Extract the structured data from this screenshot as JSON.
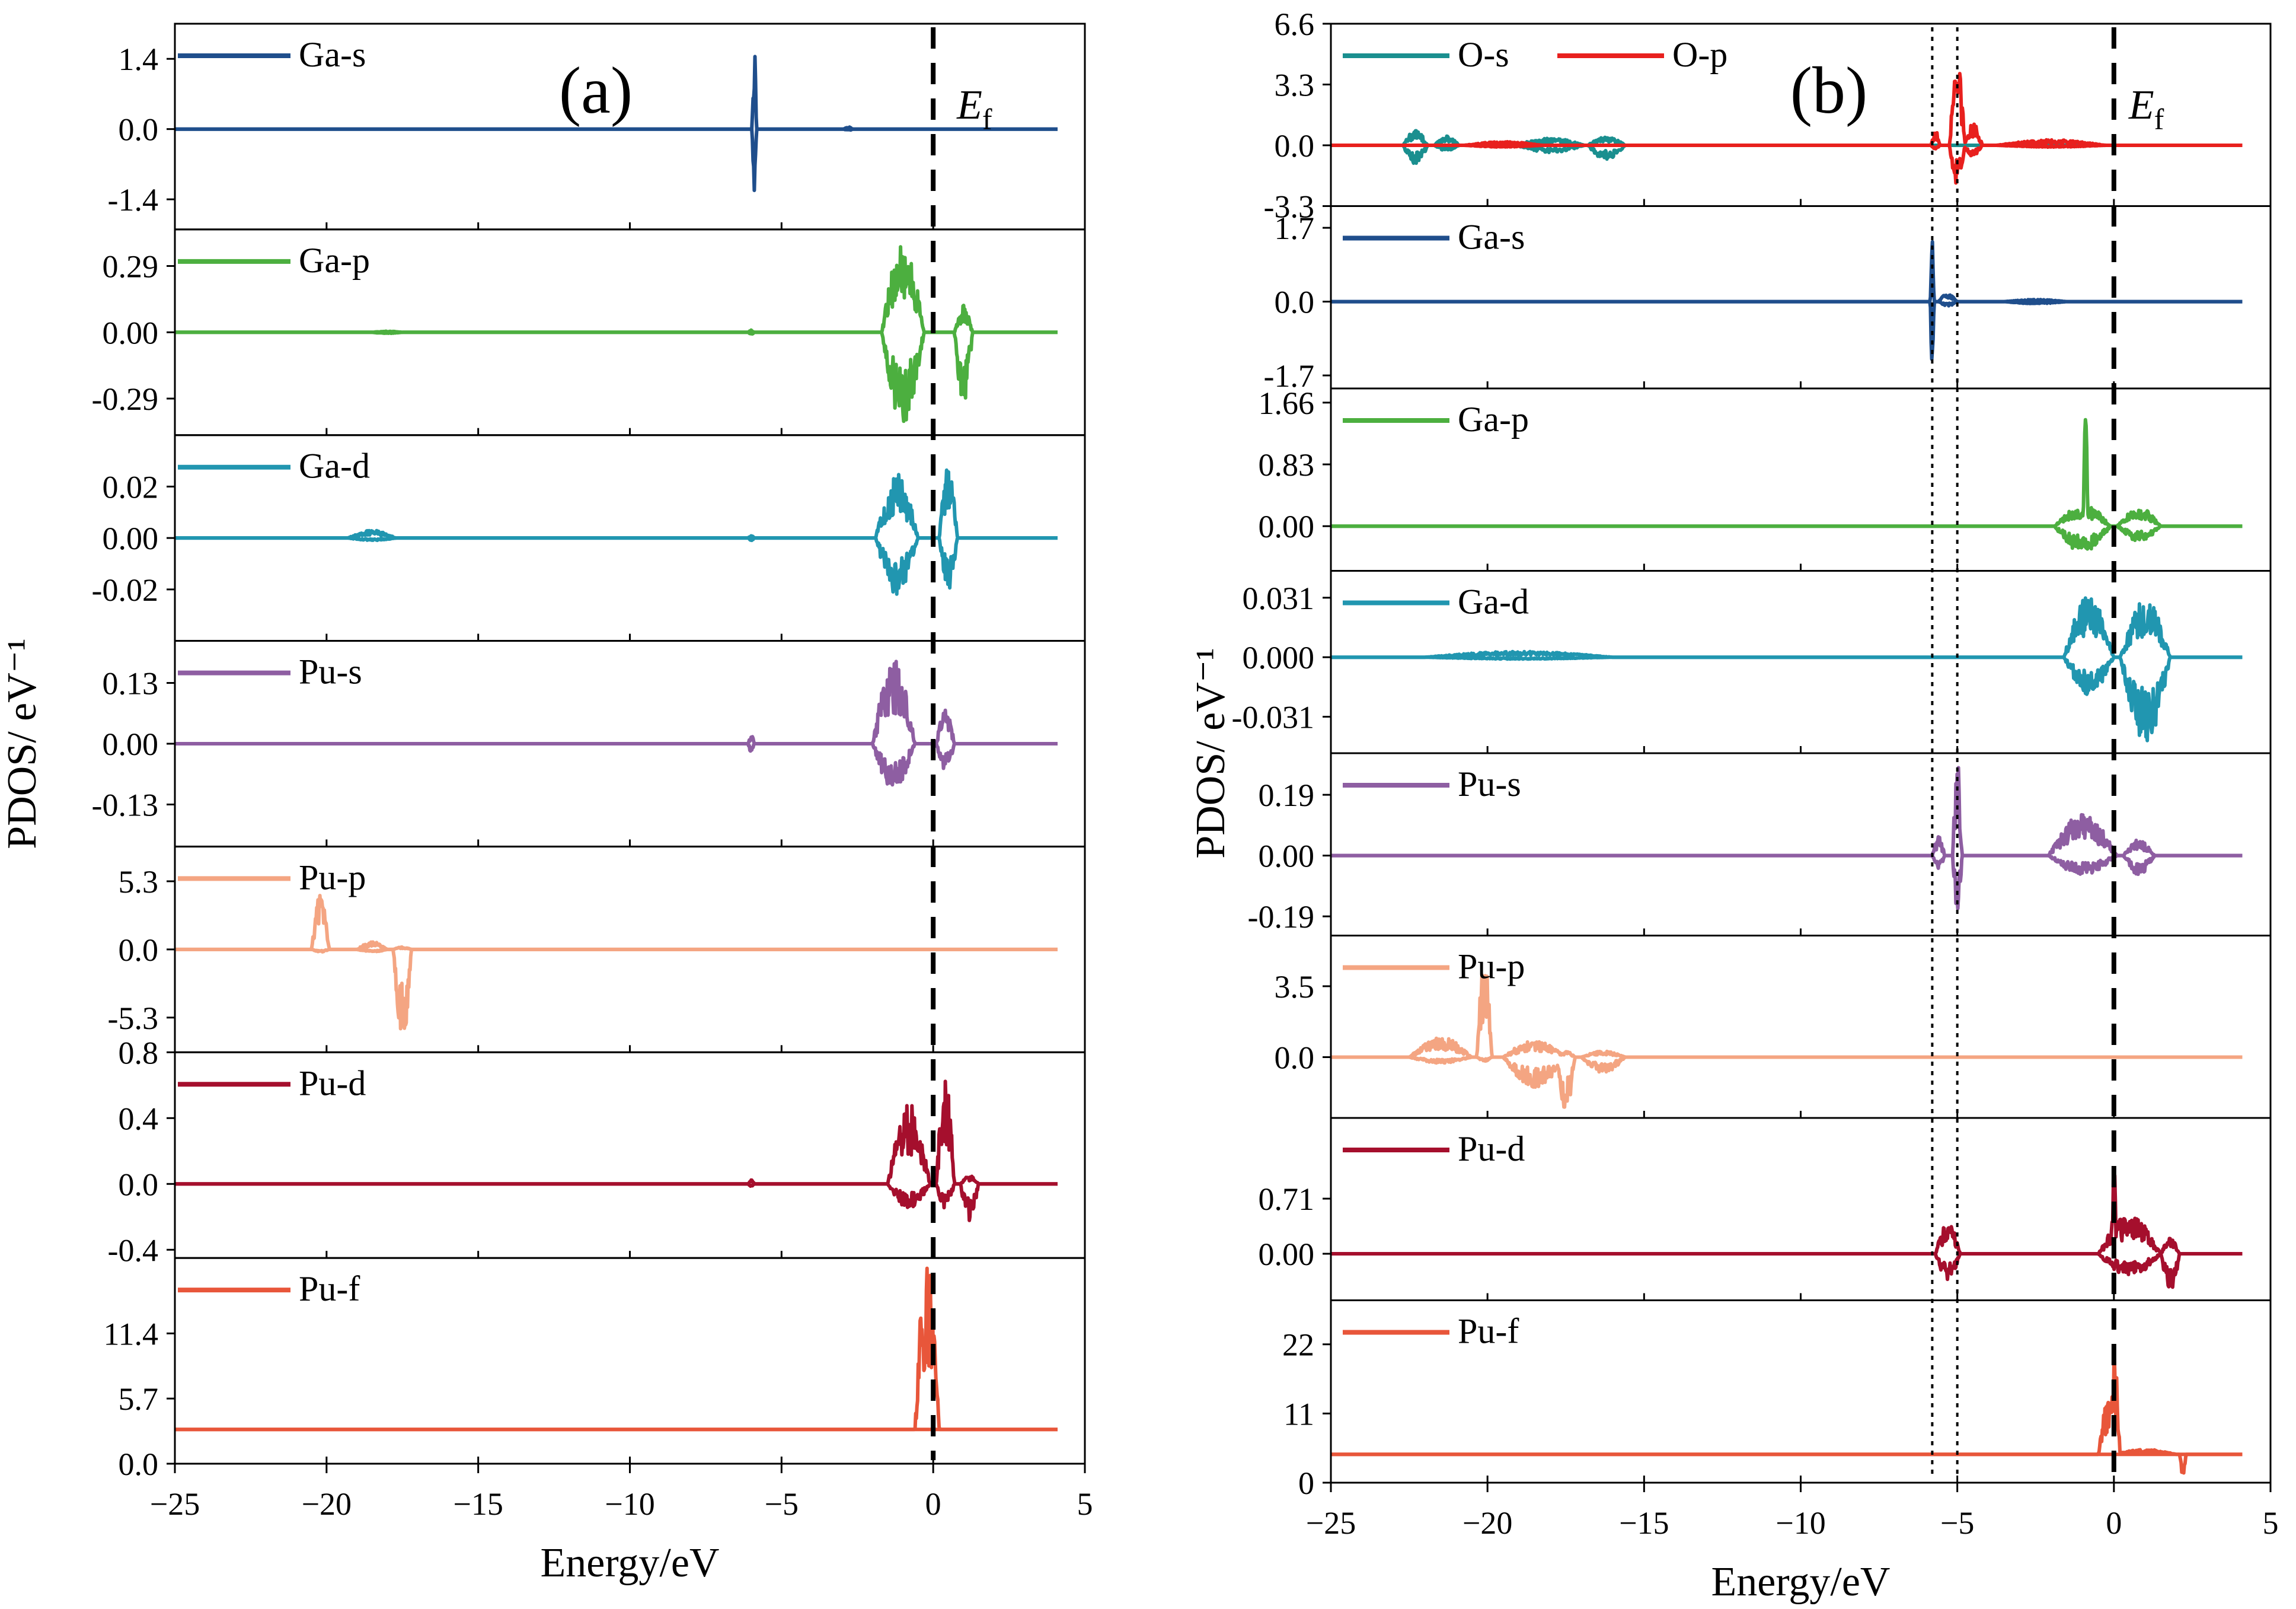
{
  "chart_data": [
    {
      "type": "line",
      "panel_label": "(a)",
      "xlabel": "Energy/eV",
      "ylabel": "PDOS/ eV⁻¹",
      "xlim": [
        -25,
        5
      ],
      "xticks": [
        "-25",
        "-20",
        "-15",
        "-10",
        "-5",
        "0",
        "5"
      ],
      "fermi_label": "E",
      "fermi_sub": "f",
      "fermi_x": 0,
      "subplots": [
        {
          "name": "Ga-s",
          "color": "#1f4e8c",
          "ylim": [
            -2.0,
            2.1
          ],
          "yticks": [
            "1.4",
            "0.0",
            "-1.4"
          ],
          "ytick_values": [
            1.4,
            0.0,
            -1.4
          ],
          "features": [
            {
              "center": -5.9,
              "width": 0.15,
              "up": 1.8,
              "down": -1.8
            },
            {
              "center": -2.8,
              "width": 0.3,
              "up": 0.05,
              "down": -0.03
            }
          ]
        },
        {
          "name": "Ga-p",
          "color": "#4caf3f",
          "ylim": [
            -0.45,
            0.45
          ],
          "yticks": [
            "0.29",
            "0.00",
            "-0.29"
          ],
          "ytick_values": [
            0.29,
            0.0,
            -0.29
          ],
          "features": [
            {
              "center": -1.0,
              "width": 1.4,
              "up": 0.4,
              "down": -0.4
            },
            {
              "center": 1.0,
              "width": 0.6,
              "up": 0.12,
              "down": -0.32
            },
            {
              "center": -6.0,
              "width": 0.2,
              "up": 0.01,
              "down": -0.01
            },
            {
              "center": -18.0,
              "width": 1.0,
              "up": 0.005,
              "down": -0.005
            }
          ]
        },
        {
          "name": "Ga-d",
          "color": "#2196b0",
          "ylim": [
            -0.04,
            0.04
          ],
          "yticks": [
            "0.02",
            "0.00",
            "-0.02"
          ],
          "ytick_values": [
            0.02,
            0.0,
            -0.02
          ],
          "features": [
            {
              "center": -1.2,
              "width": 1.4,
              "up": 0.025,
              "down": -0.022
            },
            {
              "center": 0.5,
              "width": 0.6,
              "up": 0.03,
              "down": -0.02
            },
            {
              "center": -18.5,
              "width": 1.6,
              "up": 0.003,
              "down": -0.001
            },
            {
              "center": -6.0,
              "width": 0.2,
              "up": 0.001,
              "down": -0.001
            }
          ]
        },
        {
          "name": "Pu-s",
          "color": "#8e5ea2",
          "ylim": [
            -0.22,
            0.22
          ],
          "yticks": [
            "0.13",
            "0.00",
            "-0.13"
          ],
          "ytick_values": [
            0.13,
            0.0,
            -0.13
          ],
          "features": [
            {
              "center": -1.3,
              "width": 1.4,
              "up": 0.18,
              "down": -0.1
            },
            {
              "center": 0.4,
              "width": 0.6,
              "up": 0.08,
              "down": -0.06
            },
            {
              "center": -6.0,
              "width": 0.2,
              "up": 0.02,
              "down": -0.02
            }
          ]
        },
        {
          "name": "Pu-p",
          "color": "#f4a582",
          "ylim": [
            -8.0,
            8.0
          ],
          "yticks": [
            "5.3",
            "0.0",
            "-5.3"
          ],
          "ytick_values": [
            5.3,
            0.0,
            -5.3
          ],
          "features": [
            {
              "center": -20.2,
              "width": 0.6,
              "up": 4.5,
              "down": -0.2
            },
            {
              "center": -18.5,
              "width": 1.0,
              "up": 0.6,
              "down": -0.2
            },
            {
              "center": -17.5,
              "width": 0.6,
              "up": 0.2,
              "down": -7.5
            }
          ]
        },
        {
          "name": "Pu-d",
          "color": "#a50f2d",
          "ylim": [
            -0.45,
            0.8
          ],
          "yticks": [
            "0.8",
            "0.4",
            "0.0",
            "-0.4"
          ],
          "ytick_values": [
            0.8,
            0.4,
            0.0,
            -0.4
          ],
          "features": [
            {
              "center": -0.8,
              "width": 1.4,
              "up": 0.5,
              "down": -0.15
            },
            {
              "center": 0.4,
              "width": 0.6,
              "up": 0.65,
              "down": -0.15
            },
            {
              "center": 1.2,
              "width": 0.6,
              "up": 0.05,
              "down": -0.25
            },
            {
              "center": -6.0,
              "width": 0.2,
              "up": 0.03,
              "down": -0.02
            }
          ]
        },
        {
          "name": "Pu-f",
          "color": "#e8563a",
          "ylim": [
            0.0,
            18.0
          ],
          "yticks": [
            "11.4",
            "5.7",
            "0.0"
          ],
          "ytick_values": [
            11.4,
            5.7,
            0.0
          ],
          "baseline": 3.0,
          "features": [
            {
              "center": -0.2,
              "width": 0.8,
              "up": 15.5,
              "down": 0
            },
            {
              "center": 0.0,
              "width": 0.3,
              "up": 8.5,
              "down": 0
            }
          ]
        }
      ]
    },
    {
      "type": "line",
      "panel_label": "(b)",
      "xlabel": "Energy/eV",
      "ylabel": "PDOS/ eV⁻¹",
      "xlim": [
        -25,
        5
      ],
      "xticks": [
        "-25",
        "-20",
        "-15",
        "-10",
        "-5",
        "0",
        "5"
      ],
      "fermi_label": "E",
      "fermi_sub": "f",
      "fermi_x": 0,
      "dotted_lines_x": [
        -5.8,
        -5.0
      ],
      "subplots": [
        {
          "names": [
            "O-s",
            "O-p"
          ],
          "colors": [
            "#1a8f8f",
            "#e8201e"
          ],
          "ylim": [
            -3.3,
            6.6
          ],
          "yticks": [
            "6.6",
            "3.3",
            "0.0",
            "-3.3"
          ],
          "ytick_values": [
            6.6,
            3.3,
            0.0,
            -3.3
          ],
          "features_by_series": [
            [
              {
                "center": -22.3,
                "width": 0.8,
                "up": 0.8,
                "down": -1.0
              },
              {
                "center": -21.3,
                "width": 0.8,
                "up": 0.5,
                "down": -0.3
              },
              {
                "center": -18.0,
                "width": 2.2,
                "up": 0.4,
                "down": -0.4
              },
              {
                "center": -16.2,
                "width": 1.2,
                "up": 0.5,
                "down": -0.8
              }
            ],
            [
              {
                "center": -5.0,
                "width": 0.5,
                "up": 4.6,
                "down": -2.2
              },
              {
                "center": -4.5,
                "width": 0.6,
                "up": 1.2,
                "down": -0.6
              },
              {
                "center": -5.7,
                "width": 0.3,
                "up": 0.8,
                "down": -0.2
              },
              {
                "center": -19.5,
                "width": 2.5,
                "up": 0.2,
                "down": -0.1
              },
              {
                "center": -2.0,
                "width": 3.5,
                "up": 0.3,
                "down": -0.1
              }
            ]
          ]
        },
        {
          "name": "Ga-s",
          "color": "#1f4e8c",
          "ylim": [
            -2.0,
            2.2
          ],
          "yticks": [
            "1.7",
            "0.0",
            "-1.7"
          ],
          "ytick_values": [
            1.7,
            0.0,
            -1.7
          ],
          "features": [
            {
              "center": -5.8,
              "width": 0.12,
              "up": 2.0,
              "down": -2.0
            },
            {
              "center": -5.3,
              "width": 0.6,
              "up": 0.2,
              "down": -0.1
            },
            {
              "center": -2.5,
              "width": 2.0,
              "up": 0.05,
              "down": -0.05
            }
          ]
        },
        {
          "name": "Ga-p",
          "color": "#4caf3f",
          "ylim": [
            -0.6,
            1.85
          ],
          "yticks": [
            "1.66",
            "0.83",
            "0.00"
          ],
          "ytick_values": [
            1.66,
            0.83,
            0.0
          ],
          "features": [
            {
              "center": -0.9,
              "width": 0.18,
              "up": 1.5,
              "down": -0.1
            },
            {
              "center": -1.0,
              "width": 1.8,
              "up": 0.3,
              "down": -0.35
            },
            {
              "center": 0.8,
              "width": 1.4,
              "up": 0.25,
              "down": -0.2
            }
          ]
        },
        {
          "name": "Ga-d",
          "color": "#2196b0",
          "ylim": [
            -0.05,
            0.045
          ],
          "yticks": [
            "0.031",
            "0.000",
            "-0.031"
          ],
          "ytick_values": [
            0.031,
            0.0,
            -0.031
          ],
          "features": [
            {
              "center": -0.8,
              "width": 1.6,
              "up": 0.032,
              "down": -0.02
            },
            {
              "center": 1.0,
              "width": 1.6,
              "up": 0.03,
              "down": -0.045
            },
            {
              "center": -19.0,
              "width": 6.0,
              "up": 0.003,
              "down": -0.001
            }
          ]
        },
        {
          "name": "Pu-s",
          "color": "#8e5ea2",
          "ylim": [
            -0.25,
            0.32
          ],
          "yticks": [
            "0.19",
            "0.00",
            "-0.19"
          ],
          "ytick_values": [
            0.19,
            0.0,
            -0.19
          ],
          "features": [
            {
              "center": -5.0,
              "width": 0.3,
              "up": 0.3,
              "down": -0.2
            },
            {
              "center": -5.6,
              "width": 0.4,
              "up": 0.06,
              "down": -0.04
            },
            {
              "center": -1.0,
              "width": 2.2,
              "up": 0.13,
              "down": -0.06
            },
            {
              "center": 0.8,
              "width": 1.0,
              "up": 0.05,
              "down": -0.06
            }
          ]
        },
        {
          "name": "Pu-p",
          "color": "#f4a582",
          "ylim": [
            -3.0,
            6.0
          ],
          "yticks": [
            "3.5",
            "0.0"
          ],
          "ytick_values": [
            3.5,
            0.0
          ],
          "features": [
            {
              "center": -20.1,
              "width": 0.5,
              "up": 4.8,
              "down": -0.2
            },
            {
              "center": -21.5,
              "width": 2.0,
              "up": 1.0,
              "down": -0.3
            },
            {
              "center": -18.5,
              "width": 2.0,
              "up": 0.8,
              "down": -1.5
            },
            {
              "center": -17.5,
              "width": 0.6,
              "up": 0.3,
              "down": -2.8
            },
            {
              "center": -16.3,
              "width": 1.4,
              "up": 0.3,
              "down": -0.8
            }
          ]
        },
        {
          "name": "Pu-d",
          "color": "#a50f2d",
          "ylim": [
            -0.6,
            1.75
          ],
          "yticks": [
            "0.71",
            "0.00"
          ],
          "ytick_values": [
            0.71,
            0.0
          ],
          "features": [
            {
              "center": -5.3,
              "width": 0.8,
              "up": 0.4,
              "down": -0.35
            },
            {
              "center": 0.0,
              "width": 0.15,
              "up": 1.5,
              "down": 0
            },
            {
              "center": 0.5,
              "width": 2.0,
              "up": 0.5,
              "down": -0.3
            },
            {
              "center": 1.8,
              "width": 0.6,
              "up": 0.2,
              "down": -0.5
            }
          ]
        },
        {
          "name": "Pu-f",
          "color": "#e8563a",
          "ylim": [
            0.0,
            29.0
          ],
          "yticks": [
            "22",
            "11",
            "0"
          ],
          "ytick_values": [
            22,
            11,
            0
          ],
          "baseline": 4.5,
          "features": [
            {
              "center": 0.0,
              "width": 0.4,
              "up": 17.5,
              "down": 0
            },
            {
              "center": -0.2,
              "width": 0.6,
              "up": 9.0,
              "down": 0
            },
            {
              "center": 1.0,
              "width": 2.0,
              "up": 0.8,
              "down": 0
            },
            {
              "center": 2.2,
              "width": 0.2,
              "up": 0.0,
              "down": -3.5
            }
          ]
        }
      ]
    }
  ]
}
